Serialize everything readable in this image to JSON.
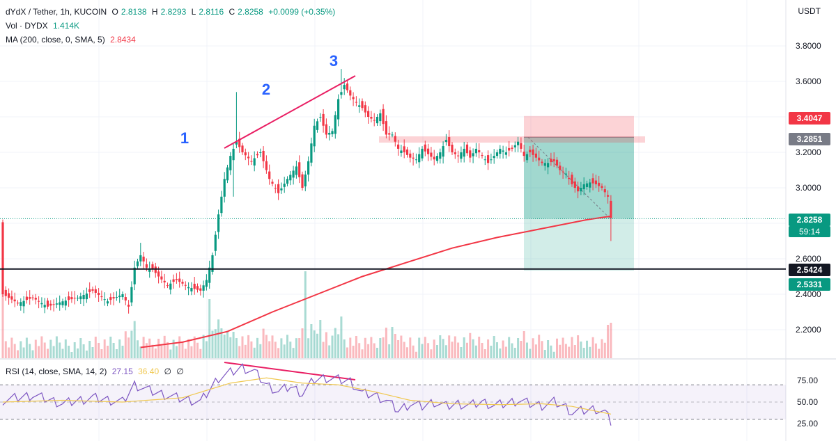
{
  "header": {
    "symbol": "dYdX / Tether, 1h, KUCOIN",
    "open_label": "O",
    "open": "2.8138",
    "high_label": "H",
    "high": "2.8293",
    "low_label": "L",
    "low": "2.8116",
    "close_label": "C",
    "close": "2.8258",
    "change": "+0.0099 (+0.35%)",
    "vol_label": "Vol · DYDX",
    "vol_value": "1.414K",
    "ma_label": "MA (200, close, 0, SMA, 5)",
    "ma_value": "2.8434",
    "rsi_label": "RSI (14, close, SMA, 14, 2)",
    "rsi_value": "27.15",
    "rsi_sma": "36.40",
    "rsi_na1": "∅",
    "rsi_na2": "∅"
  },
  "currency": "USDT",
  "annotations": [
    "1",
    "2",
    "3"
  ],
  "price_tags": {
    "stop": "3.4047",
    "entry": "3.2851",
    "current": "2.8258",
    "countdown": "59:14",
    "support": "2.5424",
    "target": "2.5331"
  },
  "colors": {
    "up": "#089981",
    "down": "#f23645",
    "ma": "#f23645",
    "rsi": "#7e57c2",
    "rsi_sma": "#f0c850",
    "annotation": "#2962ff",
    "trendline": "#e91e63"
  },
  "chart_data": [
    {
      "type": "candlestick",
      "ylim": [
        2.1,
        3.95
      ],
      "y_ticks": [
        "3.8000",
        "3.6000",
        "3.4000",
        "3.2000",
        "3.0000",
        "2.8000",
        "2.6000",
        "2.4000",
        "2.2000"
      ],
      "y_tick_values": [
        3.8,
        3.6,
        3.4,
        3.2,
        3.0,
        2.8,
        2.6,
        2.4,
        2.2
      ],
      "price_path": [
        [
          0,
          2.4
        ],
        [
          5,
          2.35
        ],
        [
          10,
          2.38
        ],
        [
          15,
          2.33
        ],
        [
          20,
          2.36
        ],
        [
          25,
          2.38
        ],
        [
          30,
          2.42
        ],
        [
          35,
          2.36
        ],
        [
          40,
          2.4
        ],
        [
          42,
          2.33
        ],
        [
          44,
          2.55
        ],
        [
          46,
          2.62
        ],
        [
          48,
          2.55
        ],
        [
          50,
          2.54
        ],
        [
          52,
          2.5
        ],
        [
          55,
          2.45
        ],
        [
          58,
          2.48
        ],
        [
          62,
          2.44
        ],
        [
          66,
          2.42
        ],
        [
          68,
          2.48
        ],
        [
          70,
          2.62
        ],
        [
          72,
          2.85
        ],
        [
          74,
          3.05
        ],
        [
          76,
          3.18
        ],
        [
          78,
          3.26
        ],
        [
          80,
          3.2
        ],
        [
          83,
          3.15
        ],
        [
          86,
          3.2
        ],
        [
          89,
          3.05
        ],
        [
          92,
          2.97
        ],
        [
          95,
          3.05
        ],
        [
          98,
          3.12
        ],
        [
          100,
          3.0
        ],
        [
          102,
          3.15
        ],
        [
          104,
          3.35
        ],
        [
          106,
          3.4
        ],
        [
          108,
          3.3
        ],
        [
          110,
          3.32
        ],
        [
          112,
          3.5
        ],
        [
          114,
          3.58
        ],
        [
          116,
          3.52
        ],
        [
          118,
          3.48
        ],
        [
          120,
          3.45
        ],
        [
          122,
          3.4
        ],
        [
          124,
          3.38
        ],
        [
          126,
          3.42
        ],
        [
          128,
          3.3
        ],
        [
          130,
          3.3
        ],
        [
          132,
          3.22
        ],
        [
          134,
          3.2
        ],
        [
          136,
          3.17
        ],
        [
          138,
          3.16
        ],
        [
          140,
          3.22
        ],
        [
          142,
          3.19
        ],
        [
          144,
          3.16
        ],
        [
          146,
          3.2
        ],
        [
          148,
          3.27
        ],
        [
          150,
          3.2
        ],
        [
          152,
          3.18
        ],
        [
          154,
          3.22
        ],
        [
          156,
          3.17
        ],
        [
          158,
          3.22
        ],
        [
          160,
          3.18
        ],
        [
          162,
          3.14
        ],
        [
          164,
          3.18
        ],
        [
          166,
          3.22
        ],
        [
          168,
          3.2
        ],
        [
          170,
          3.22
        ],
        [
          172,
          3.26
        ],
        [
          174,
          3.18
        ],
        [
          176,
          3.2
        ],
        [
          178,
          3.17
        ],
        [
          180,
          3.14
        ],
        [
          182,
          3.14
        ],
        [
          184,
          3.15
        ],
        [
          186,
          3.1
        ],
        [
          188,
          3.08
        ],
        [
          190,
          3.02
        ],
        [
          192,
          2.98
        ],
        [
          194,
          3.02
        ],
        [
          196,
          3.03
        ],
        [
          198,
          3.02
        ],
        [
          200,
          3.0
        ],
        [
          202,
          2.95
        ],
        [
          203,
          2.83
        ]
      ],
      "candle_count": 204,
      "ma200_path": [
        [
          46,
          2.1
        ],
        [
          60,
          2.13
        ],
        [
          75,
          2.19
        ],
        [
          90,
          2.3
        ],
        [
          105,
          2.4
        ],
        [
          120,
          2.5
        ],
        [
          135,
          2.58
        ],
        [
          150,
          2.66
        ],
        [
          165,
          2.72
        ],
        [
          180,
          2.77
        ],
        [
          195,
          2.82
        ],
        [
          203,
          2.84
        ]
      ],
      "support_level": 2.5424,
      "current_price": 2.8258,
      "position": {
        "stop": 3.4047,
        "entry": 3.2851,
        "target": 2.5331
      }
    },
    {
      "type": "line",
      "title": "RSI",
      "ylim": [
        20,
        95
      ],
      "y_ticks": [
        "75.00",
        "50.00",
        "25.00"
      ],
      "y_tick_values": [
        75,
        50,
        25
      ],
      "rsi_path": [
        [
          0,
          52
        ],
        [
          10,
          58
        ],
        [
          20,
          48
        ],
        [
          30,
          55
        ],
        [
          40,
          50
        ],
        [
          44,
          70
        ],
        [
          50,
          62
        ],
        [
          58,
          55
        ],
        [
          66,
          50
        ],
        [
          72,
          78
        ],
        [
          76,
          84
        ],
        [
          80,
          90
        ],
        [
          84,
          85
        ],
        [
          88,
          70
        ],
        [
          92,
          62
        ],
        [
          96,
          68
        ],
        [
          100,
          60
        ],
        [
          104,
          76
        ],
        [
          108,
          78
        ],
        [
          112,
          76
        ],
        [
          116,
          74
        ],
        [
          120,
          60
        ],
        [
          124,
          58
        ],
        [
          128,
          52
        ],
        [
          132,
          40
        ],
        [
          136,
          48
        ],
        [
          140,
          45
        ],
        [
          144,
          50
        ],
        [
          148,
          45
        ],
        [
          152,
          48
        ],
        [
          156,
          46
        ],
        [
          160,
          50
        ],
        [
          164,
          46
        ],
        [
          168,
          48
        ],
        [
          172,
          52
        ],
        [
          176,
          48
        ],
        [
          180,
          46
        ],
        [
          184,
          50
        ],
        [
          188,
          44
        ],
        [
          190,
          38
        ],
        [
          194,
          40
        ],
        [
          198,
          42
        ],
        [
          201,
          38
        ],
        [
          203,
          27
        ]
      ],
      "rsi_sma_path": [
        [
          0,
          50
        ],
        [
          20,
          52
        ],
        [
          40,
          50
        ],
        [
          60,
          55
        ],
        [
          76,
          72
        ],
        [
          88,
          78
        ],
        [
          100,
          72
        ],
        [
          112,
          70
        ],
        [
          124,
          62
        ],
        [
          136,
          52
        ],
        [
          150,
          48
        ],
        [
          166,
          47
        ],
        [
          180,
          48
        ],
        [
          190,
          45
        ],
        [
          203,
          36
        ]
      ]
    }
  ]
}
